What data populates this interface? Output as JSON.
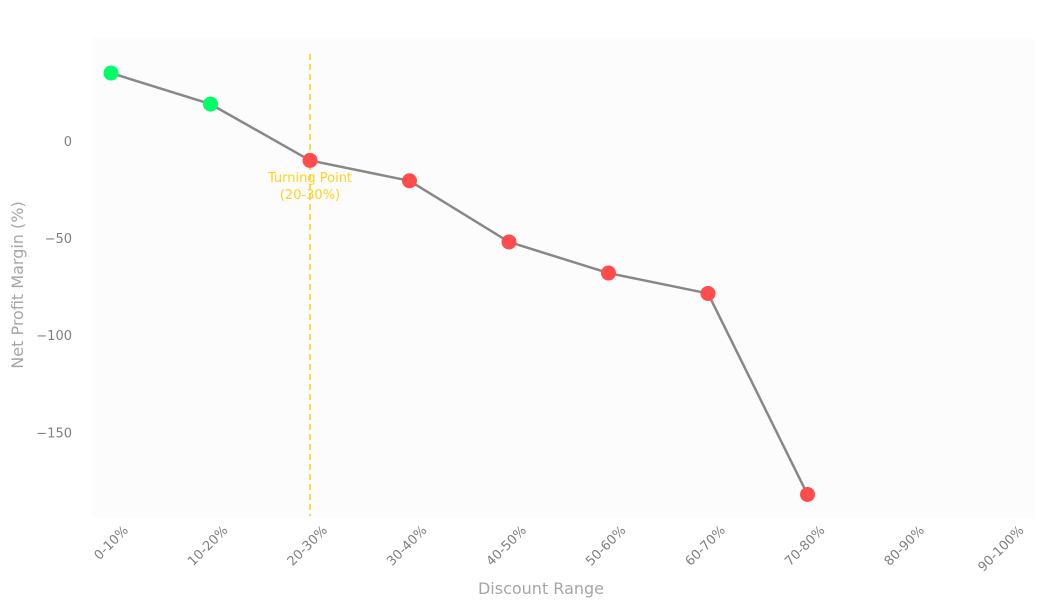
{
  "chart_data": {
    "type": "line",
    "title": "",
    "xlabel": "Discount Range",
    "ylabel": "Net Profit Margin (%)",
    "categories": [
      "0-10%",
      "10-20%",
      "20-30%",
      "30-40%",
      "40-50%",
      "50-60%",
      "60-70%",
      "70-80%",
      "80-90%",
      "90-100%"
    ],
    "series": [
      {
        "values": [
          35,
          19,
          -10,
          -20.5,
          -52,
          -68,
          -78.5,
          -182,
          null,
          null
        ]
      }
    ],
    "ylim": [
      -192,
      44
    ],
    "yticks": [
      0,
      -50,
      -100,
      -150
    ],
    "ytick_labels": [
      "0",
      "−50",
      "−100",
      "−150"
    ],
    "grid": false,
    "legend": "none",
    "annotation": {
      "category": "20-30%",
      "text_line1": "Turning Point",
      "text_line2": "(20-30%)"
    },
    "colors": {
      "line": "#888888",
      "positive_point": "#00ff66",
      "negative_point": "#ff4d4d",
      "annotation": "#ffd21f",
      "axis_text": "#808080",
      "axis_title": "#a6a6a6",
      "plot_background": "#fcfcfc"
    }
  }
}
